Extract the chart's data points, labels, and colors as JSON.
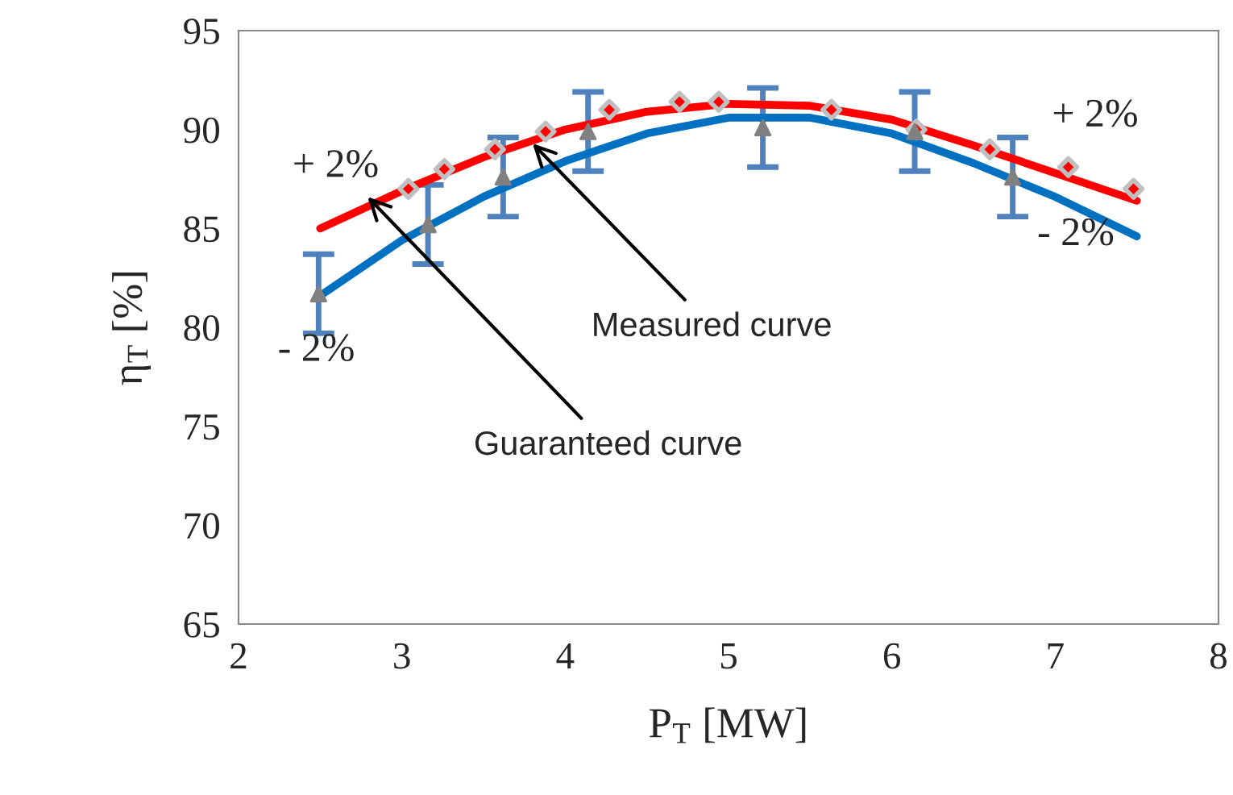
{
  "chart_data": {
    "type": "line",
    "xlabel": "P$_{T}$ [MW]",
    "ylabel": "η$_{T}$ [%]",
    "xlim": [
      2,
      8
    ],
    "xticks": [
      2,
      3,
      4,
      5,
      6,
      7,
      8
    ],
    "ylim": [
      65,
      95
    ],
    "yticks": [
      65,
      70,
      75,
      80,
      85,
      90,
      95
    ],
    "grid": false,
    "legend": false,
    "series": [
      {
        "color": "#ff0000",
        "marker": "none",
        "x": [
          2.5,
          3,
          3.5,
          4,
          4.5,
          5,
          5.5,
          6,
          6.5,
          7,
          7.5
        ],
        "values": [
          85.0,
          86.9,
          88.6,
          90.0,
          90.9,
          91.3,
          91.2,
          90.5,
          89.2,
          87.8,
          86.4
        ]
      },
      {
        "color": "#0070c0",
        "marker": "none",
        "x": [
          2.5,
          3,
          3.5,
          4,
          4.5,
          5,
          5.5,
          6,
          6.5,
          7,
          7.5
        ],
        "values": [
          81.6,
          84.4,
          86.6,
          88.4,
          89.8,
          90.6,
          90.6,
          89.8,
          88.3,
          86.6,
          84.6
        ]
      },
      {
        "type": "scatter",
        "color": "#ff0000",
        "marker": "diamond",
        "x": [
          3.04,
          3.26,
          3.57,
          3.88,
          4.27,
          4.7,
          4.94,
          5.63,
          6.15,
          6.6,
          7.08,
          7.48
        ],
        "values": [
          87.0,
          88.0,
          89.0,
          89.9,
          91.0,
          91.4,
          91.4,
          91.0,
          90.0,
          89.0,
          88.1,
          87.0
        ]
      },
      {
        "type": "scatter",
        "color": "#808080",
        "marker": "triangle",
        "x": [
          2.49,
          3.16,
          3.62,
          4.14,
          5.21,
          6.14,
          6.74
        ],
        "values": [
          81.7,
          85.2,
          87.6,
          89.9,
          90.1,
          89.9,
          87.6
        ],
        "errors": [
          2,
          2,
          2,
          2,
          2,
          2,
          2
        ]
      }
    ],
    "annotations": [
      "+ 2%",
      "- 2%",
      "+ 2%",
      "- 2%",
      {
        "text": "Measured curve",
        "x": 3.8,
        "y": 89.3
      },
      {
        "text": "Guaranteed curve",
        "x": 2.79,
        "y": 86.6
      }
    ]
  }
}
